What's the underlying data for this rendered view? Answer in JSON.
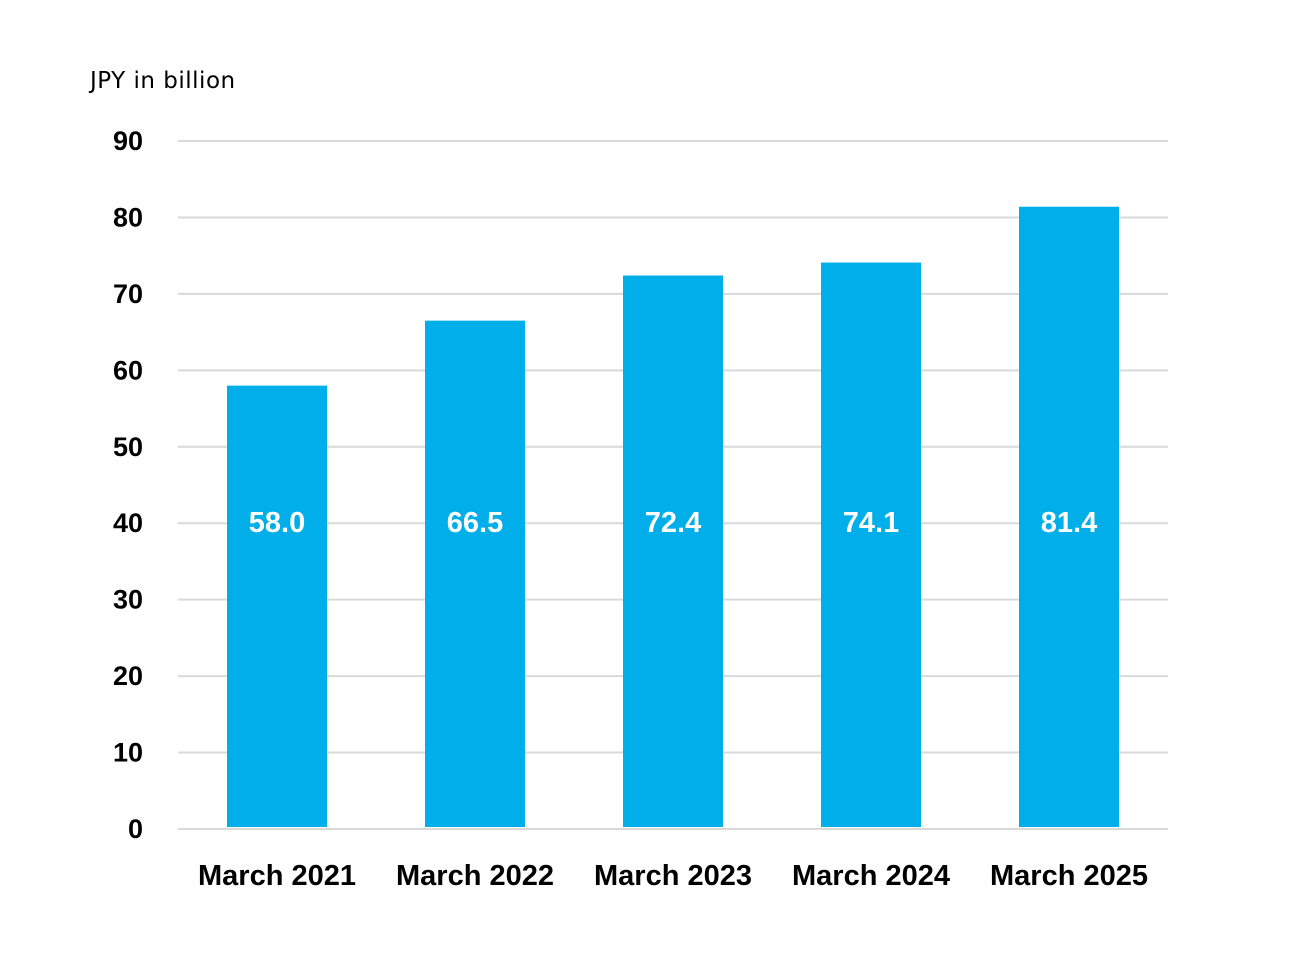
{
  "chart_data": {
    "type": "bar",
    "ylabel": "JPY in billion",
    "categories": [
      "March 2021",
      "March 2022",
      "March 2023",
      "March 2024",
      "March 2025"
    ],
    "values": [
      58.0,
      66.5,
      72.4,
      74.1,
      81.4
    ],
    "data_labels": [
      "58.0",
      "66.5",
      "72.4",
      "74.1",
      "81.4"
    ],
    "ylim": [
      0,
      90
    ],
    "yticks": [
      0,
      10,
      20,
      30,
      40,
      50,
      60,
      70,
      80,
      90
    ],
    "grid": true,
    "legend": "none",
    "bar_color": "#00AEEA",
    "label_color": "#FFFFFF"
  }
}
